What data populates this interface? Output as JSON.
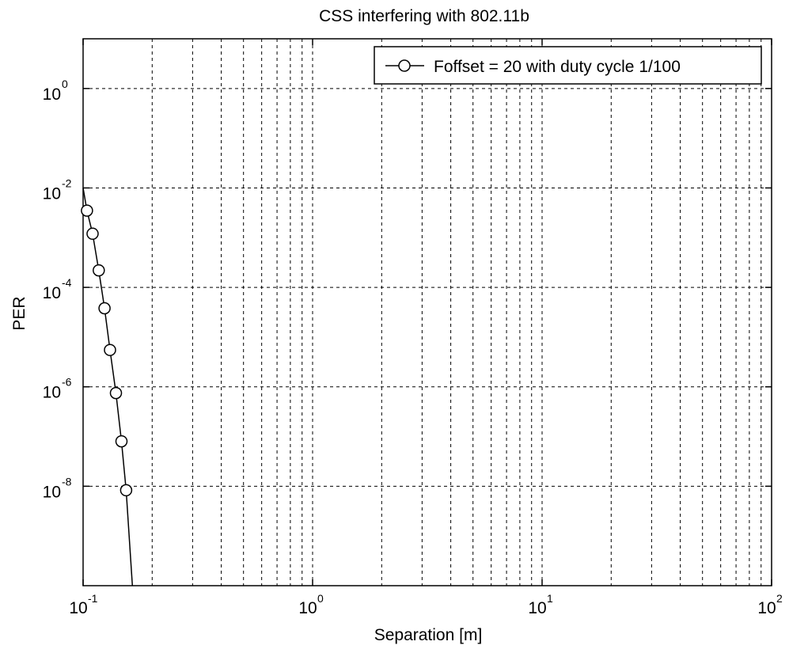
{
  "chart_data": {
    "type": "line",
    "title": "CSS interfering with 802.11b",
    "xlabel": "Separation [m]",
    "ylabel": "PER",
    "xscale": "log",
    "yscale": "log",
    "xlim": [
      0.1,
      100
    ],
    "ylim": [
      1e-10,
      10
    ],
    "grid": true,
    "legend_position": "top-right",
    "x_ticks": [
      {
        "value": 0.1,
        "base": "10",
        "exp": "-1"
      },
      {
        "value": 1,
        "base": "10",
        "exp": "0"
      },
      {
        "value": 10,
        "base": "10",
        "exp": "1"
      },
      {
        "value": 100,
        "base": "10",
        "exp": "2"
      }
    ],
    "y_ticks": [
      {
        "value": 1,
        "base": "10",
        "exp": "0"
      },
      {
        "value": 0.01,
        "base": "10",
        "exp": "-2"
      },
      {
        "value": 0.0001,
        "base": "10",
        "exp": "-4"
      },
      {
        "value": 1e-06,
        "base": "10",
        "exp": "-6"
      },
      {
        "value": 1e-08,
        "base": "10",
        "exp": "-8"
      }
    ],
    "series": [
      {
        "name": "Foffset = 20 with duty cycle 1/100",
        "color": "#000000",
        "marker": "circle",
        "x": [
          0.1,
          0.104,
          0.11,
          0.117,
          0.124,
          0.131,
          0.139,
          0.147,
          0.154,
          0.164
        ],
        "y": [
          0.01,
          0.0035,
          0.0012,
          0.00022,
          3.8e-05,
          5.5e-06,
          7.5e-07,
          8e-08,
          8.3e-09,
          1e-10
        ],
        "marker_indices": [
          1,
          2,
          3,
          4,
          5,
          6,
          7,
          8
        ]
      }
    ]
  }
}
